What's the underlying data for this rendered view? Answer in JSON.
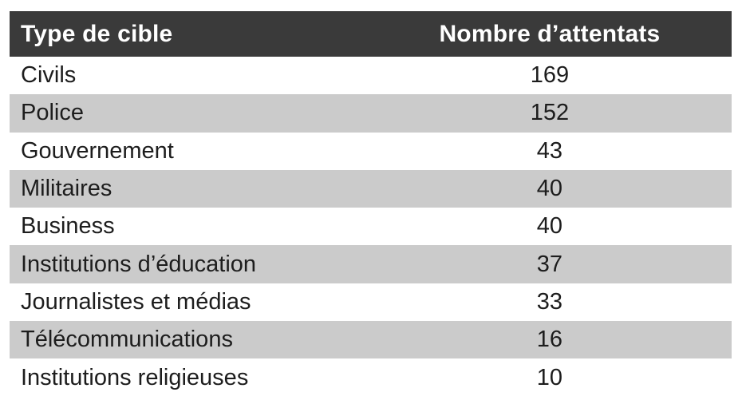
{
  "table": {
    "columns": [
      "Type de cible",
      "Nombre d’attentats"
    ],
    "rows": [
      {
        "label": "Civils",
        "value": "169"
      },
      {
        "label": "Police",
        "value": "152"
      },
      {
        "label": "Gouvernement",
        "value": "43"
      },
      {
        "label": "Militaires",
        "value": "40"
      },
      {
        "label": "Business",
        "value": "40"
      },
      {
        "label": "Institutions d’éducation",
        "value": "37"
      },
      {
        "label": "Journalistes et médias",
        "value": "33"
      },
      {
        "label": "Télécommunications",
        "value": "16"
      },
      {
        "label": "Institutions religieuses",
        "value": "10"
      }
    ]
  },
  "chart_data": {
    "type": "table",
    "columns": [
      "Type de cible",
      "Nombre d’attentats"
    ],
    "rows": [
      [
        "Civils",
        169
      ],
      [
        "Police",
        152
      ],
      [
        "Gouvernement",
        43
      ],
      [
        "Militaires",
        40
      ],
      [
        "Business",
        40
      ],
      [
        "Institutions d’éducation",
        37
      ],
      [
        "Journalistes et médias",
        33
      ],
      [
        "Télécommunications",
        16
      ],
      [
        "Institutions religieuses",
        10
      ]
    ]
  },
  "colors": {
    "header_bg": "#3a3a3a",
    "header_text": "#ffffff",
    "row_bg": "#ffffff",
    "row_alt_bg": "#cbcbcb",
    "body_text": "#1d1d1d"
  }
}
